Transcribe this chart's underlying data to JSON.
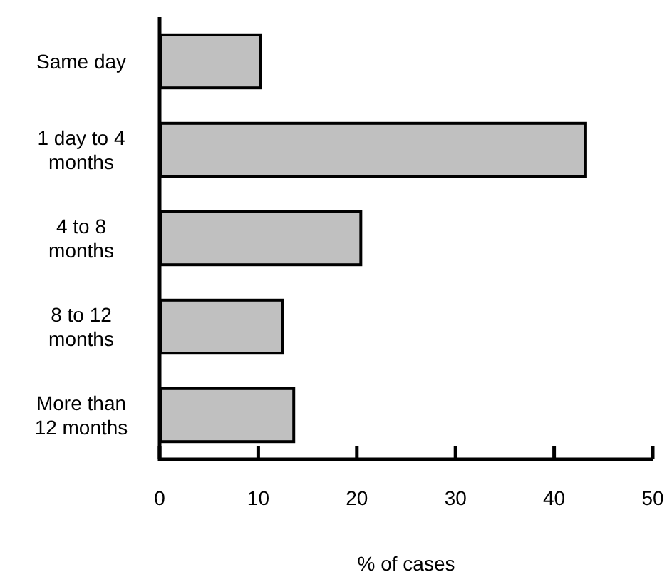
{
  "chart_data": {
    "type": "bar",
    "orientation": "horizontal",
    "categories": [
      "Same day",
      "1 day to 4 months",
      "4 to 8 months",
      "8 to 12 months",
      "More than 12 months"
    ],
    "values": [
      10.2,
      43.2,
      20.4,
      12.5,
      13.6
    ],
    "color": "#c0c0c0",
    "xlabel": "% of cases",
    "xlim": [
      0,
      50
    ],
    "xticks": [
      0,
      10,
      20,
      30,
      40,
      50
    ],
    "grid": false
  }
}
